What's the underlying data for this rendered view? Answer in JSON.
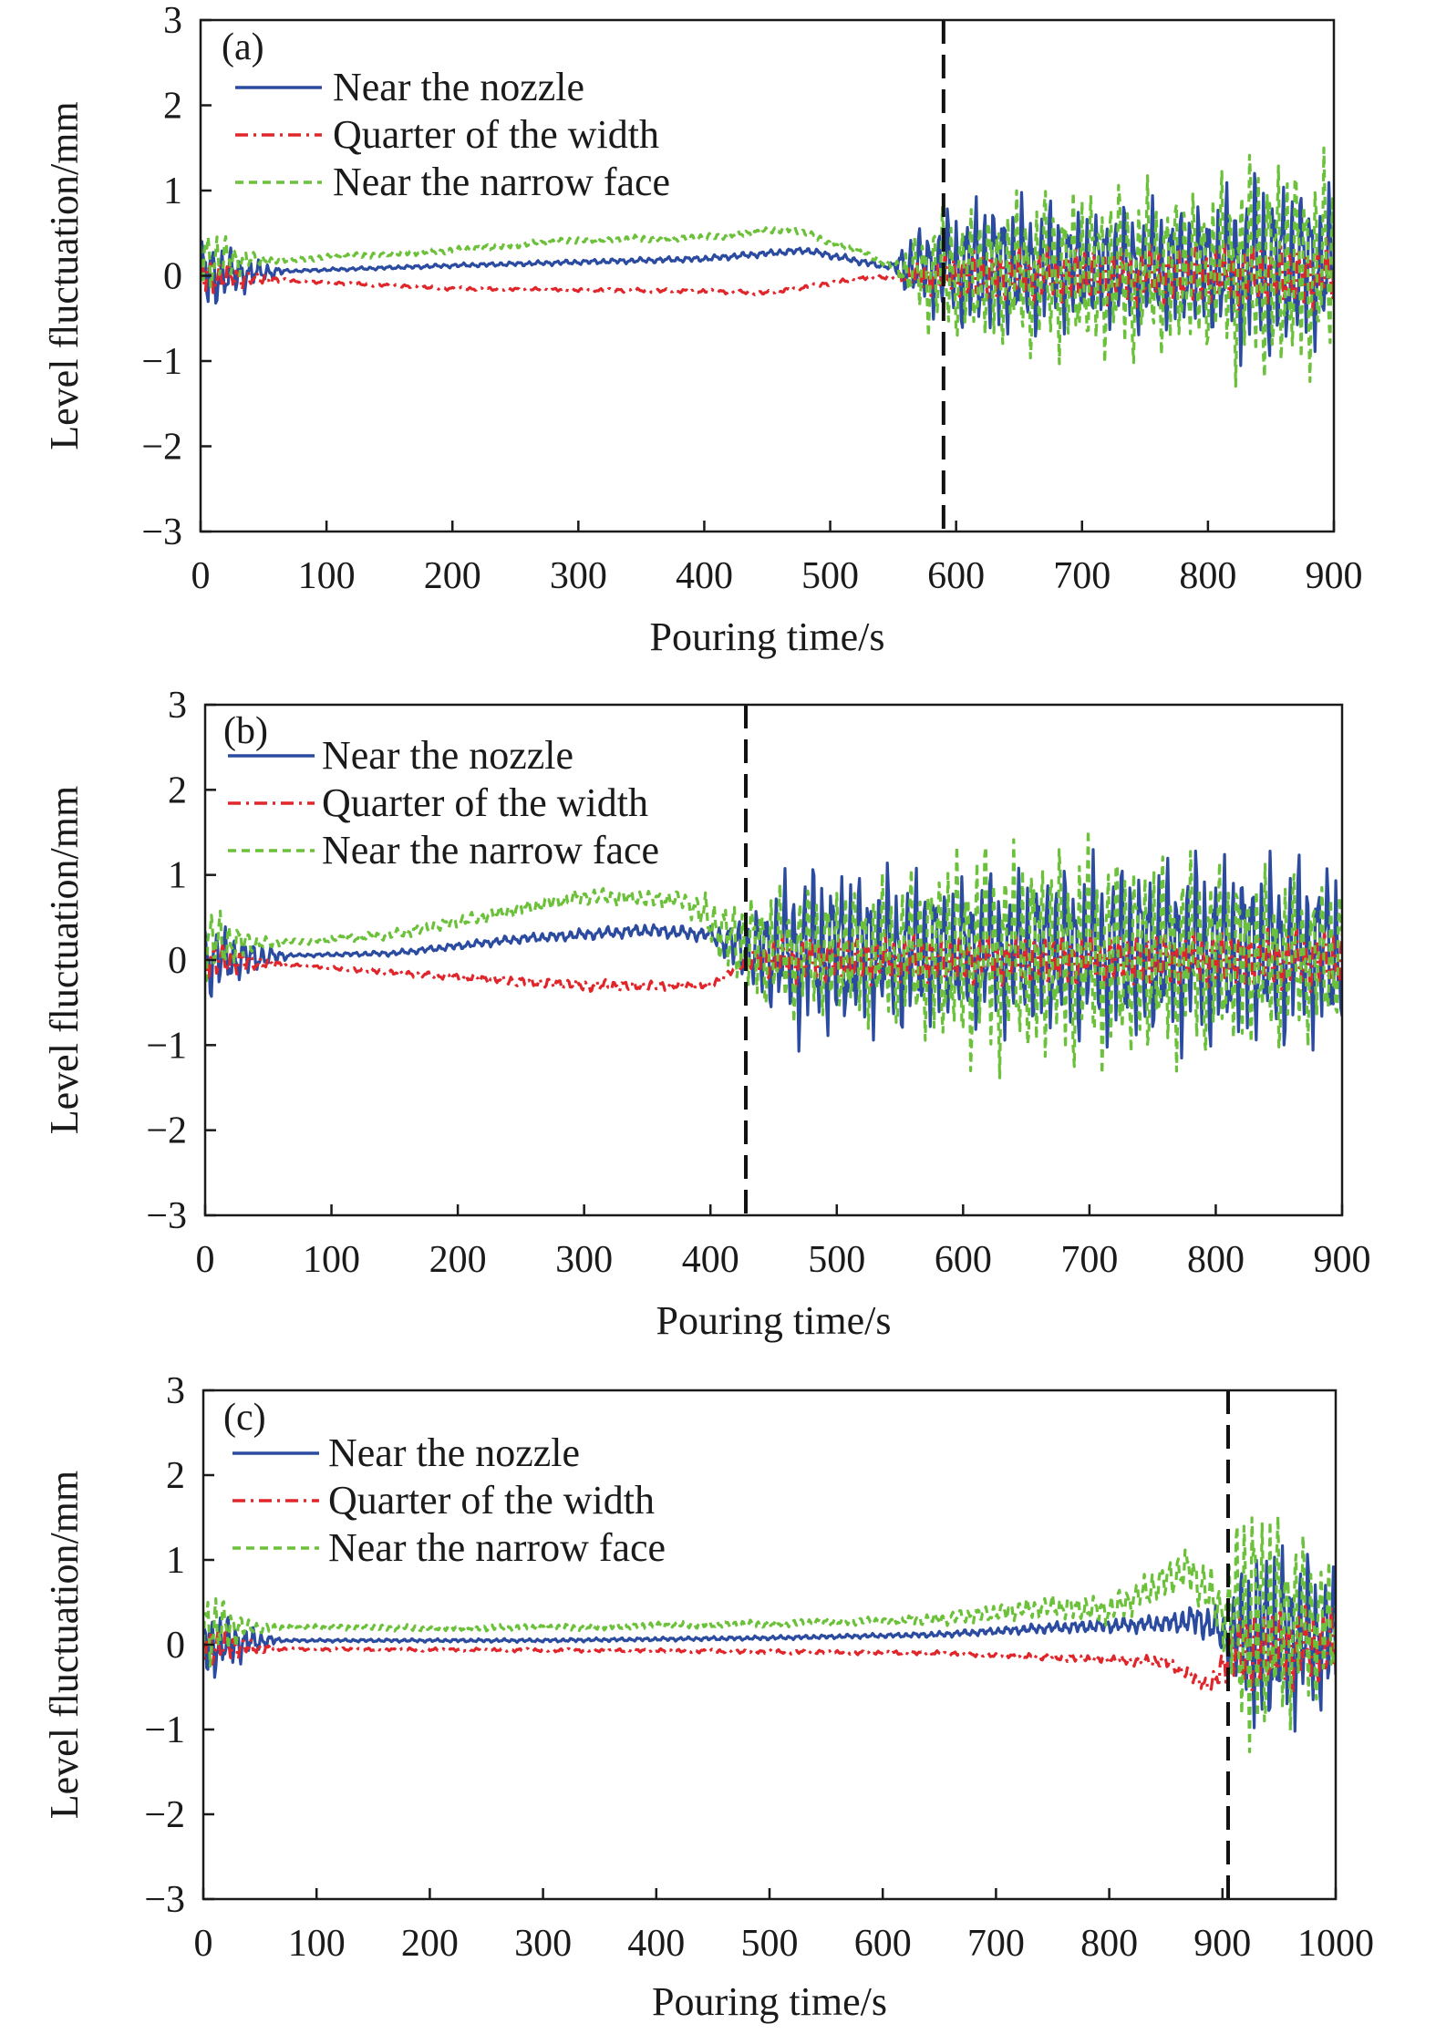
{
  "figure": {
    "background": "#ffffff"
  },
  "chart_data": [
    {
      "type": "line",
      "panel_label": "(a)",
      "xlabel": "Pouring time/s",
      "ylabel": "Level fluctuation/mm",
      "xlim": [
        0,
        900
      ],
      "ylim": [
        -3,
        3
      ],
      "xticks": [
        "0",
        "100",
        "200",
        "300",
        "400",
        "500",
        "600",
        "700",
        "800",
        "900"
      ],
      "yticks": [
        "3",
        "2",
        "1",
        "0",
        "−1",
        "−2",
        "−3"
      ],
      "marker_line_x": 590,
      "legend_position": "top-left",
      "series": [
        {
          "name": "Near the nozzle",
          "color": "#2b4ba0",
          "dash": "solid",
          "mean": [
            [
              0,
              0
            ],
            [
              60,
              0.05
            ],
            [
              200,
              0.12
            ],
            [
              400,
              0.2
            ],
            [
              480,
              0.3
            ],
            [
              540,
              0.12
            ],
            [
              600,
              0.1
            ],
            [
              900,
              0.1
            ]
          ],
          "amp": [
            [
              0,
              0.55
            ],
            [
              40,
              0.2
            ],
            [
              70,
              0.02
            ],
            [
              550,
              0.05
            ],
            [
              560,
              0.4
            ],
            [
              620,
              1.0
            ],
            [
              700,
              0.8
            ],
            [
              800,
              0.9
            ],
            [
              840,
              1.3
            ],
            [
              900,
              1.0
            ]
          ]
        },
        {
          "name": "Quarter of the width",
          "color": "#e0262b",
          "dash": "dashdot",
          "mean": [
            [
              0,
              0
            ],
            [
              60,
              -0.05
            ],
            [
              200,
              -0.15
            ],
            [
              400,
              -0.18
            ],
            [
              450,
              -0.2
            ],
            [
              530,
              -0.02
            ],
            [
              600,
              0
            ],
            [
              900,
              0
            ]
          ],
          "amp": [
            [
              0,
              0.3
            ],
            [
              40,
              0.1
            ],
            [
              70,
              0.02
            ],
            [
              550,
              0.03
            ],
            [
              570,
              0.2
            ],
            [
              620,
              0.35
            ],
            [
              900,
              0.45
            ]
          ]
        },
        {
          "name": "Near the narrow face",
          "color": "#6cc13a",
          "dash": "dashed",
          "mean": [
            [
              0,
              0.2
            ],
            [
              60,
              0.18
            ],
            [
              200,
              0.3
            ],
            [
              300,
              0.42
            ],
            [
              400,
              0.45
            ],
            [
              470,
              0.55
            ],
            [
              520,
              0.3
            ],
            [
              560,
              0.05
            ],
            [
              600,
              0
            ],
            [
              900,
              0.1
            ]
          ],
          "amp": [
            [
              0,
              0.5
            ],
            [
              40,
              0.1
            ],
            [
              70,
              0.04
            ],
            [
              550,
              0.05
            ],
            [
              580,
              0.8
            ],
            [
              700,
              1.2
            ],
            [
              800,
              1.1
            ],
            [
              840,
              1.6
            ],
            [
              900,
              1.4
            ]
          ]
        }
      ]
    },
    {
      "type": "line",
      "panel_label": "(b)",
      "xlabel": "Pouring time/s",
      "ylabel": "Level fluctuation/mm",
      "xlim": [
        0,
        900
      ],
      "ylim": [
        -3,
        3
      ],
      "xticks": [
        "0",
        "100",
        "200",
        "300",
        "400",
        "500",
        "600",
        "700",
        "800",
        "900"
      ],
      "yticks": [
        "3",
        "2",
        "1",
        "0",
        "−1",
        "−2",
        "−3"
      ],
      "marker_line_x": 428,
      "legend_position": "top-left",
      "series": [
        {
          "name": "Near the nozzle",
          "color": "#2b4ba0",
          "dash": "solid",
          "mean": [
            [
              0,
              0
            ],
            [
              60,
              0.05
            ],
            [
              150,
              0.08
            ],
            [
              250,
              0.25
            ],
            [
              350,
              0.35
            ],
            [
              400,
              0.3
            ],
            [
              430,
              0.1
            ],
            [
              900,
              0.1
            ]
          ],
          "amp": [
            [
              0,
              0.55
            ],
            [
              40,
              0.2
            ],
            [
              70,
              0.02
            ],
            [
              200,
              0.05
            ],
            [
              400,
              0.1
            ],
            [
              430,
              0.5
            ],
            [
              470,
              1.2
            ],
            [
              600,
              1.0
            ],
            [
              700,
              1.2
            ],
            [
              800,
              1.3
            ],
            [
              900,
              1.2
            ]
          ]
        },
        {
          "name": "Quarter of the width",
          "color": "#e0262b",
          "dash": "dashdot",
          "mean": [
            [
              0,
              0
            ],
            [
              60,
              -0.05
            ],
            [
              200,
              -0.2
            ],
            [
              300,
              -0.3
            ],
            [
              400,
              -0.3
            ],
            [
              430,
              0
            ],
            [
              900,
              0
            ]
          ],
          "amp": [
            [
              0,
              0.3
            ],
            [
              40,
              0.1
            ],
            [
              70,
              0.02
            ],
            [
              300,
              0.08
            ],
            [
              420,
              0.05
            ],
            [
              450,
              0.3
            ],
            [
              900,
              0.4
            ]
          ]
        },
        {
          "name": "Near the narrow face",
          "color": "#6cc13a",
          "dash": "dashed",
          "mean": [
            [
              0,
              0.2
            ],
            [
              60,
              0.2
            ],
            [
              150,
              0.3
            ],
            [
              250,
              0.6
            ],
            [
              300,
              0.75
            ],
            [
              380,
              0.7
            ],
            [
              420,
              0.2
            ],
            [
              450,
              0.1
            ],
            [
              900,
              0
            ]
          ],
          "amp": [
            [
              0,
              0.55
            ],
            [
              40,
              0.1
            ],
            [
              70,
              0.04
            ],
            [
              250,
              0.1
            ],
            [
              380,
              0.12
            ],
            [
              440,
              0.8
            ],
            [
              550,
              1.0
            ],
            [
              600,
              1.5
            ],
            [
              700,
              1.5
            ],
            [
              800,
              1.3
            ],
            [
              900,
              1.0
            ]
          ]
        }
      ]
    },
    {
      "type": "line",
      "panel_label": "(c)",
      "xlabel": "Pouring time/s",
      "ylabel": "Level fluctuation/mm",
      "xlim": [
        0,
        1000
      ],
      "ylim": [
        -3,
        3
      ],
      "xticks": [
        "0",
        "100",
        "200",
        "300",
        "400",
        "500",
        "600",
        "700",
        "800",
        "900",
        "1000"
      ],
      "yticks": [
        "3",
        "2",
        "1",
        "0",
        "−1",
        "−2",
        "−3"
      ],
      "marker_line_x": 905,
      "legend_position": "top-left",
      "series": [
        {
          "name": "Near the nozzle",
          "color": "#2b4ba0",
          "dash": "solid",
          "mean": [
            [
              0,
              0
            ],
            [
              60,
              0.05
            ],
            [
              300,
              0.05
            ],
            [
              500,
              0.08
            ],
            [
              650,
              0.12
            ],
            [
              750,
              0.2
            ],
            [
              850,
              0.25
            ],
            [
              880,
              0.3
            ],
            [
              905,
              0.1
            ],
            [
              1000,
              0.1
            ]
          ],
          "amp": [
            [
              0,
              0.55
            ],
            [
              40,
              0.2
            ],
            [
              70,
              0.02
            ],
            [
              600,
              0.03
            ],
            [
              700,
              0.05
            ],
            [
              850,
              0.12
            ],
            [
              900,
              0.3
            ],
            [
              930,
              1.4
            ],
            [
              1000,
              0.9
            ]
          ]
        },
        {
          "name": "Quarter of the width",
          "color": "#e0262b",
          "dash": "dashdot",
          "mean": [
            [
              0,
              0
            ],
            [
              60,
              -0.05
            ],
            [
              400,
              -0.07
            ],
            [
              650,
              -0.1
            ],
            [
              750,
              -0.15
            ],
            [
              850,
              -0.2
            ],
            [
              890,
              -0.5
            ],
            [
              905,
              -0.1
            ],
            [
              1000,
              0
            ]
          ],
          "amp": [
            [
              0,
              0.3
            ],
            [
              40,
              0.1
            ],
            [
              70,
              0.02
            ],
            [
              700,
              0.03
            ],
            [
              800,
              0.06
            ],
            [
              890,
              0.1
            ],
            [
              920,
              0.6
            ],
            [
              1000,
              0.5
            ]
          ]
        },
        {
          "name": "Near the narrow face",
          "color": "#6cc13a",
          "dash": "dashed",
          "mean": [
            [
              0,
              0.2
            ],
            [
              60,
              0.2
            ],
            [
              300,
              0.2
            ],
            [
              500,
              0.25
            ],
            [
              650,
              0.3
            ],
            [
              750,
              0.45
            ],
            [
              800,
              0.4
            ],
            [
              870,
              0.9
            ],
            [
              905,
              0.3
            ],
            [
              1000,
              0.2
            ]
          ],
          "amp": [
            [
              0,
              0.6
            ],
            [
              40,
              0.1
            ],
            [
              70,
              0.04
            ],
            [
              600,
              0.05
            ],
            [
              750,
              0.15
            ],
            [
              850,
              0.25
            ],
            [
              900,
              0.4
            ],
            [
              920,
              2.0
            ],
            [
              960,
              1.3
            ],
            [
              1000,
              0.8
            ]
          ]
        }
      ]
    }
  ]
}
